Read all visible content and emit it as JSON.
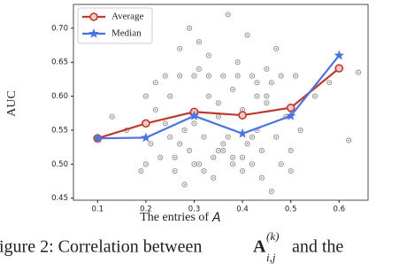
{
  "chart_data": {
    "type": "line",
    "xlabel": "The entries of",
    "xlabel_symbol": "A",
    "ylabel": "AUC",
    "xlim": [
      0.05,
      0.66
    ],
    "ylim": [
      0.447,
      0.735
    ],
    "xticks": [
      0.1,
      0.2,
      0.3,
      0.4,
      0.5,
      0.6
    ],
    "yticks": [
      {
        "value": 0.45,
        "label": "0.45"
      },
      {
        "value": 0.5,
        "label": "0.50"
      },
      {
        "value": 0.55,
        "label": "0.55"
      },
      {
        "value": 0.6,
        "label": "0.60"
      },
      {
        "value": 0.65,
        "label": "0.65"
      },
      {
        "value": 0.7,
        "label": "0.70"
      }
    ],
    "legend": "upper left",
    "series": [
      {
        "name": "Average",
        "color": "#c0392b",
        "marker": "circle",
        "x": [
          0.1,
          0.2,
          0.3,
          0.4,
          0.5,
          0.6
        ],
        "values": [
          0.538,
          0.56,
          0.577,
          0.572,
          0.583,
          0.641
        ]
      },
      {
        "name": "Median",
        "color": "#4a74e0",
        "marker": "star",
        "x": [
          0.1,
          0.2,
          0.3,
          0.4,
          0.5,
          0.6
        ],
        "values": [
          0.538,
          0.539,
          0.571,
          0.545,
          0.571,
          0.66
        ]
      }
    ],
    "scatter": {
      "color": "#8a8a8a",
      "x": [
        0.13,
        0.16,
        0.19,
        0.2,
        0.21,
        0.22,
        0.23,
        0.24,
        0.25,
        0.26,
        0.27,
        0.28,
        0.29,
        0.3,
        0.31,
        0.32,
        0.33,
        0.34,
        0.35,
        0.36,
        0.37,
        0.38,
        0.39,
        0.4,
        0.41,
        0.42,
        0.43,
        0.44,
        0.45,
        0.46,
        0.47,
        0.48,
        0.49,
        0.5,
        0.51,
        0.52,
        0.55,
        0.58,
        0.62,
        0.64,
        0.22,
        0.25,
        0.27,
        0.29,
        0.31,
        0.33,
        0.35,
        0.37,
        0.39,
        0.41,
        0.43,
        0.45,
        0.47,
        0.26,
        0.28,
        0.3,
        0.32,
        0.34,
        0.36,
        0.38,
        0.4,
        0.42,
        0.44,
        0.46,
        0.48,
        0.24,
        0.3,
        0.35,
        0.4,
        0.45,
        0.5,
        0.2,
        0.33,
        0.38,
        0.43,
        0.27,
        0.36,
        0.42,
        0.5,
        0.31
      ],
      "y": [
        0.57,
        0.55,
        0.49,
        0.5,
        0.53,
        0.62,
        0.51,
        0.63,
        0.54,
        0.51,
        0.63,
        0.55,
        0.52,
        0.63,
        0.5,
        0.54,
        0.63,
        0.51,
        0.52,
        0.63,
        0.54,
        0.51,
        0.63,
        0.51,
        0.53,
        0.63,
        0.55,
        0.52,
        0.6,
        0.62,
        0.54,
        0.63,
        0.57,
        0.52,
        0.63,
        0.55,
        0.6,
        0.62,
        0.535,
        0.635,
        0.58,
        0.6,
        0.67,
        0.7,
        0.68,
        0.66,
        0.59,
        0.72,
        0.65,
        0.69,
        0.6,
        0.64,
        0.67,
        0.49,
        0.47,
        0.5,
        0.49,
        0.48,
        0.52,
        0.5,
        0.49,
        0.5,
        0.48,
        0.46,
        0.5,
        0.56,
        0.56,
        0.57,
        0.58,
        0.59,
        0.58,
        0.6,
        0.6,
        0.61,
        0.62,
        0.53,
        0.53,
        0.54,
        0.49,
        0.64
      ]
    }
  },
  "caption": {
    "lead": "igure 2: Correlation between",
    "symbol": "A",
    "superscript": "(k)",
    "subscript": "i,j",
    "tail": "and the"
  }
}
